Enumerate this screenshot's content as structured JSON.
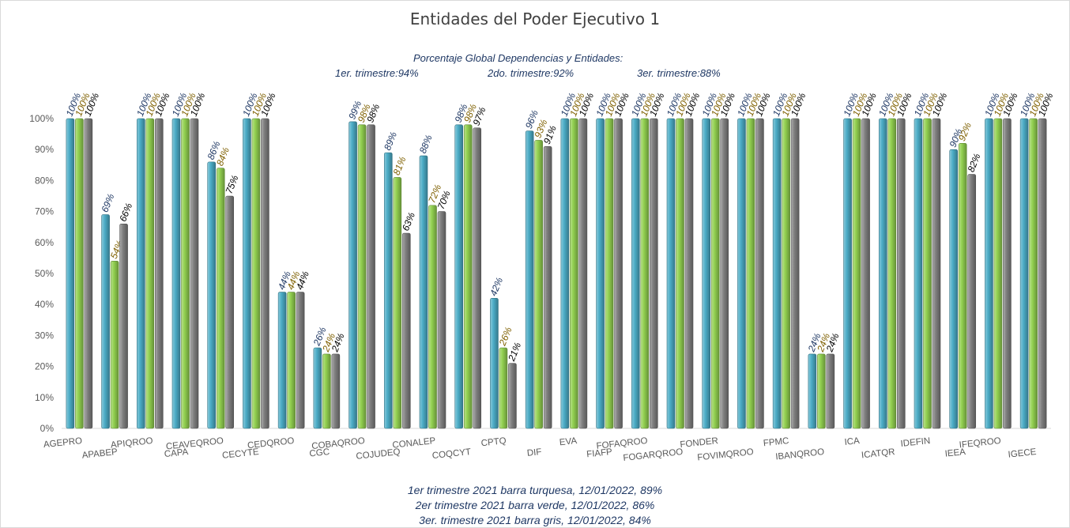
{
  "chart_data": {
    "type": "bar",
    "title": "Entidades del Poder Ejecutivo 1",
    "subtitle": "Porcentaje Global  Dependencias y Entidades:",
    "summary": {
      "q1": "1er. trimestre:94%",
      "q2": "2do. trimestre:92%",
      "q3": "3er. trimestre:88%"
    },
    "ylim": [
      0,
      100
    ],
    "yticks": [
      "0%",
      "10%",
      "20%",
      "30%",
      "40%",
      "50%",
      "60%",
      "70%",
      "80%",
      "90%",
      "100%"
    ],
    "categories": [
      "AGEPRO",
      "APABEP",
      "APIQROO",
      "CAPA",
      "CEAVEQROO",
      "CECYTE",
      "CEDQROO",
      "CGC",
      "COBAQROO",
      "COJUDEQ",
      "CONALEP",
      "COQCYT",
      "CPTQ",
      "DIF",
      "EVA",
      "FIAFP",
      "FOFAQROO",
      "FOGARQROO",
      "FONDER",
      "FOVIMQROO",
      "FPMC",
      "IBANQROO",
      "ICA",
      "ICATQR",
      "IDEFIN",
      "IEEA",
      "IFEQROO",
      "IGECE"
    ],
    "series": [
      {
        "values": [
          100,
          69,
          100,
          100,
          86,
          100,
          44,
          26,
          99,
          89,
          88,
          98,
          42,
          96,
          100,
          100,
          100,
          100,
          100,
          100,
          100,
          24,
          100,
          100,
          100,
          90,
          100,
          100
        ],
        "color": "#4bacc6"
      },
      {
        "values": [
          100,
          54,
          100,
          100,
          84,
          100,
          44,
          24,
          98,
          81,
          72,
          98,
          26,
          93,
          100,
          100,
          100,
          100,
          100,
          100,
          100,
          24,
          100,
          100,
          100,
          92,
          100,
          100
        ],
        "color": "#92d050"
      },
      {
        "values": [
          100,
          66,
          100,
          100,
          75,
          100,
          44,
          24,
          98,
          63,
          70,
          97,
          21,
          91,
          100,
          100,
          100,
          100,
          100,
          100,
          100,
          24,
          100,
          100,
          100,
          82,
          100,
          100
        ],
        "color": "#7f7f7f"
      }
    ],
    "label_colors": [
      "#1f3864",
      "#7f6000",
      "#000000"
    ],
    "footer": [
      "1er trimestre  2021 barra turquesa,   12/01/2022,  89%",
      "2er trimestre  2021 barra verde,   12/01/2022,  86%",
      "3er. trimestre 2021 barra gris, 12/01/2022, 84%"
    ]
  }
}
